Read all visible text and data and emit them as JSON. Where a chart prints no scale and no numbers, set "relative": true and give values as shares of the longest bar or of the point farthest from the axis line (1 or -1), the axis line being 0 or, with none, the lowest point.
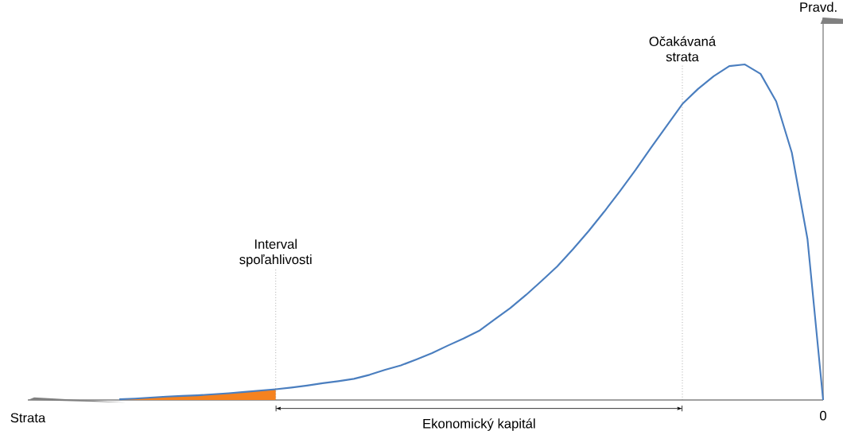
{
  "chart_data": {
    "type": "line",
    "relative": true,
    "ylabel": "Pravd.",
    "categories": [
      null,
      null,
      null,
      null,
      null,
      null,
      null,
      null,
      null,
      null,
      null,
      null,
      null,
      null,
      null,
      null,
      null,
      null,
      null,
      null,
      null,
      null,
      null,
      null,
      null,
      null,
      null,
      null,
      null,
      null,
      null,
      null,
      null,
      null,
      null,
      null,
      null,
      null,
      null,
      null,
      null,
      null,
      null,
      null,
      null,
      null
    ],
    "series": [
      {
        "color": "#4a7ebf",
        "values": [
          0.002,
          0.004,
          0.007,
          0.01,
          0.012,
          0.014,
          0.017,
          0.02,
          0.024,
          0.028,
          0.032,
          0.037,
          0.043,
          0.05,
          0.056,
          0.063,
          0.075,
          0.09,
          0.103,
          0.121,
          0.14,
          0.162,
          0.183,
          0.206,
          0.24,
          0.274,
          0.313,
          0.355,
          0.398,
          0.449,
          0.503,
          0.561,
          0.622,
          0.685,
          0.752,
          0.817,
          0.882,
          0.927,
          0.965,
          0.995,
          1,
          0.972,
          0.89,
          0.737,
          0.48,
          0
        ]
      }
    ],
    "annotations": [
      "Interval spoľahlivosti",
      "Očakávaná strata",
      "Ekonomický kapitál",
      "0",
      "Strata"
    ]
  }
}
